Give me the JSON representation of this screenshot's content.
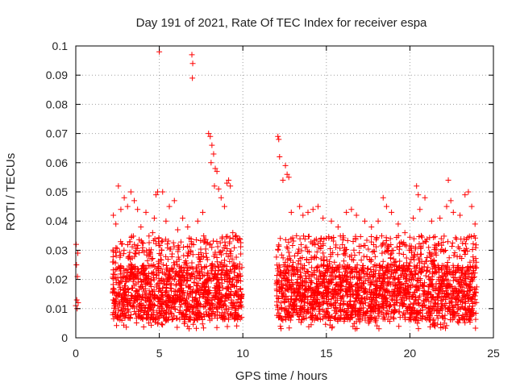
{
  "chart_data": {
    "type": "scatter",
    "title": "Day 191 of 2021, Rate Of TEC Index for receiver espa",
    "xlabel": "GPS time / hours",
    "ylabel": "ROTI / TECUs",
    "xlim": [
      0,
      25
    ],
    "ylim": [
      0,
      0.1
    ],
    "xticks": [
      0,
      5,
      10,
      15,
      20,
      25
    ],
    "yticks": [
      0,
      0.01,
      0.02,
      0.03,
      0.04,
      0.05,
      0.06,
      0.07,
      0.08,
      0.09,
      0.1
    ],
    "xtick_labels": [
      "0",
      "5",
      "10",
      "15",
      "20",
      "25"
    ],
    "ytick_labels": [
      "0",
      "0.01",
      "0.02",
      "0.03",
      "0.04",
      "0.05",
      "0.06",
      "0.07",
      "0.08",
      "0.09",
      "0.1"
    ],
    "grid": true,
    "marker": "+",
    "color": "#ff0000",
    "data_gap_hours": [
      10.0,
      12.0
    ],
    "series": [
      {
        "name": "ROTI",
        "points": [
          [
            0.0,
            0.011
          ],
          [
            0.02,
            0.032
          ],
          [
            0.04,
            0.025
          ],
          [
            0.06,
            0.013
          ],
          [
            0.08,
            0.01
          ],
          [
            0.1,
            0.021
          ],
          [
            0.12,
            0.029
          ],
          [
            0.14,
            0.012
          ],
          [
            2.25,
            0.042
          ],
          [
            2.4,
            0.039
          ],
          [
            2.55,
            0.052
          ],
          [
            2.7,
            0.044
          ],
          [
            2.9,
            0.048
          ],
          [
            3.1,
            0.045
          ],
          [
            3.3,
            0.05
          ],
          [
            3.5,
            0.047
          ],
          [
            3.7,
            0.044
          ],
          [
            3.9,
            0.038
          ],
          [
            4.2,
            0.043
          ],
          [
            4.6,
            0.036
          ],
          [
            4.7,
            0.041
          ],
          [
            4.8,
            0.049
          ],
          [
            4.9,
            0.05
          ],
          [
            5.0,
            0.098
          ],
          [
            5.2,
            0.05
          ],
          [
            5.4,
            0.04
          ],
          [
            5.6,
            0.045
          ],
          [
            5.9,
            0.047
          ],
          [
            6.1,
            0.037
          ],
          [
            6.4,
            0.041
          ],
          [
            6.7,
            0.038
          ],
          [
            6.95,
            0.097
          ],
          [
            7.0,
            0.094
          ],
          [
            6.98,
            0.089
          ],
          [
            7.3,
            0.04
          ],
          [
            7.6,
            0.043
          ],
          [
            7.95,
            0.07
          ],
          [
            8.05,
            0.069
          ],
          [
            8.15,
            0.066
          ],
          [
            8.25,
            0.063
          ],
          [
            8.35,
            0.058
          ],
          [
            8.1,
            0.06
          ],
          [
            8.45,
            0.057
          ],
          [
            8.55,
            0.051
          ],
          [
            8.3,
            0.052
          ],
          [
            8.7,
            0.048
          ],
          [
            8.9,
            0.045
          ],
          [
            9.05,
            0.053
          ],
          [
            9.15,
            0.054
          ],
          [
            9.25,
            0.052
          ],
          [
            9.4,
            0.036
          ],
          [
            9.6,
            0.035
          ],
          [
            9.8,
            0.034
          ],
          [
            12.1,
            0.069
          ],
          [
            12.15,
            0.068
          ],
          [
            12.2,
            0.062
          ],
          [
            12.4,
            0.054
          ],
          [
            12.55,
            0.059
          ],
          [
            12.65,
            0.056
          ],
          [
            12.75,
            0.055
          ],
          [
            12.9,
            0.043
          ],
          [
            13.4,
            0.045
          ],
          [
            13.6,
            0.042
          ],
          [
            13.9,
            0.043
          ],
          [
            14.2,
            0.044
          ],
          [
            14.5,
            0.045
          ],
          [
            14.8,
            0.041
          ],
          [
            15.3,
            0.04
          ],
          [
            15.7,
            0.038
          ],
          [
            16.2,
            0.043
          ],
          [
            16.5,
            0.044
          ],
          [
            16.8,
            0.042
          ],
          [
            17.3,
            0.04
          ],
          [
            17.7,
            0.038
          ],
          [
            18.1,
            0.04
          ],
          [
            18.4,
            0.048
          ],
          [
            18.6,
            0.045
          ],
          [
            18.9,
            0.043
          ],
          [
            19.3,
            0.039
          ],
          [
            19.7,
            0.036
          ],
          [
            20.2,
            0.041
          ],
          [
            20.4,
            0.052
          ],
          [
            20.5,
            0.049
          ],
          [
            20.6,
            0.044
          ],
          [
            20.9,
            0.048
          ],
          [
            21.3,
            0.04
          ],
          [
            21.8,
            0.041
          ],
          [
            22.2,
            0.045
          ],
          [
            22.3,
            0.054
          ],
          [
            22.45,
            0.047
          ],
          [
            22.6,
            0.043
          ],
          [
            23.0,
            0.042
          ],
          [
            23.3,
            0.049
          ],
          [
            23.5,
            0.05
          ],
          [
            23.7,
            0.045
          ],
          [
            23.9,
            0.039
          ]
        ],
        "dense_band": {
          "segments": [
            [
              2.2,
              9.95
            ],
            [
              12.0,
              24.0
            ]
          ],
          "baseline_range": [
            0.006,
            0.025
          ],
          "occasional_range": [
            0.025,
            0.035
          ],
          "minimum_observed": 0.003
        }
      }
    ]
  }
}
